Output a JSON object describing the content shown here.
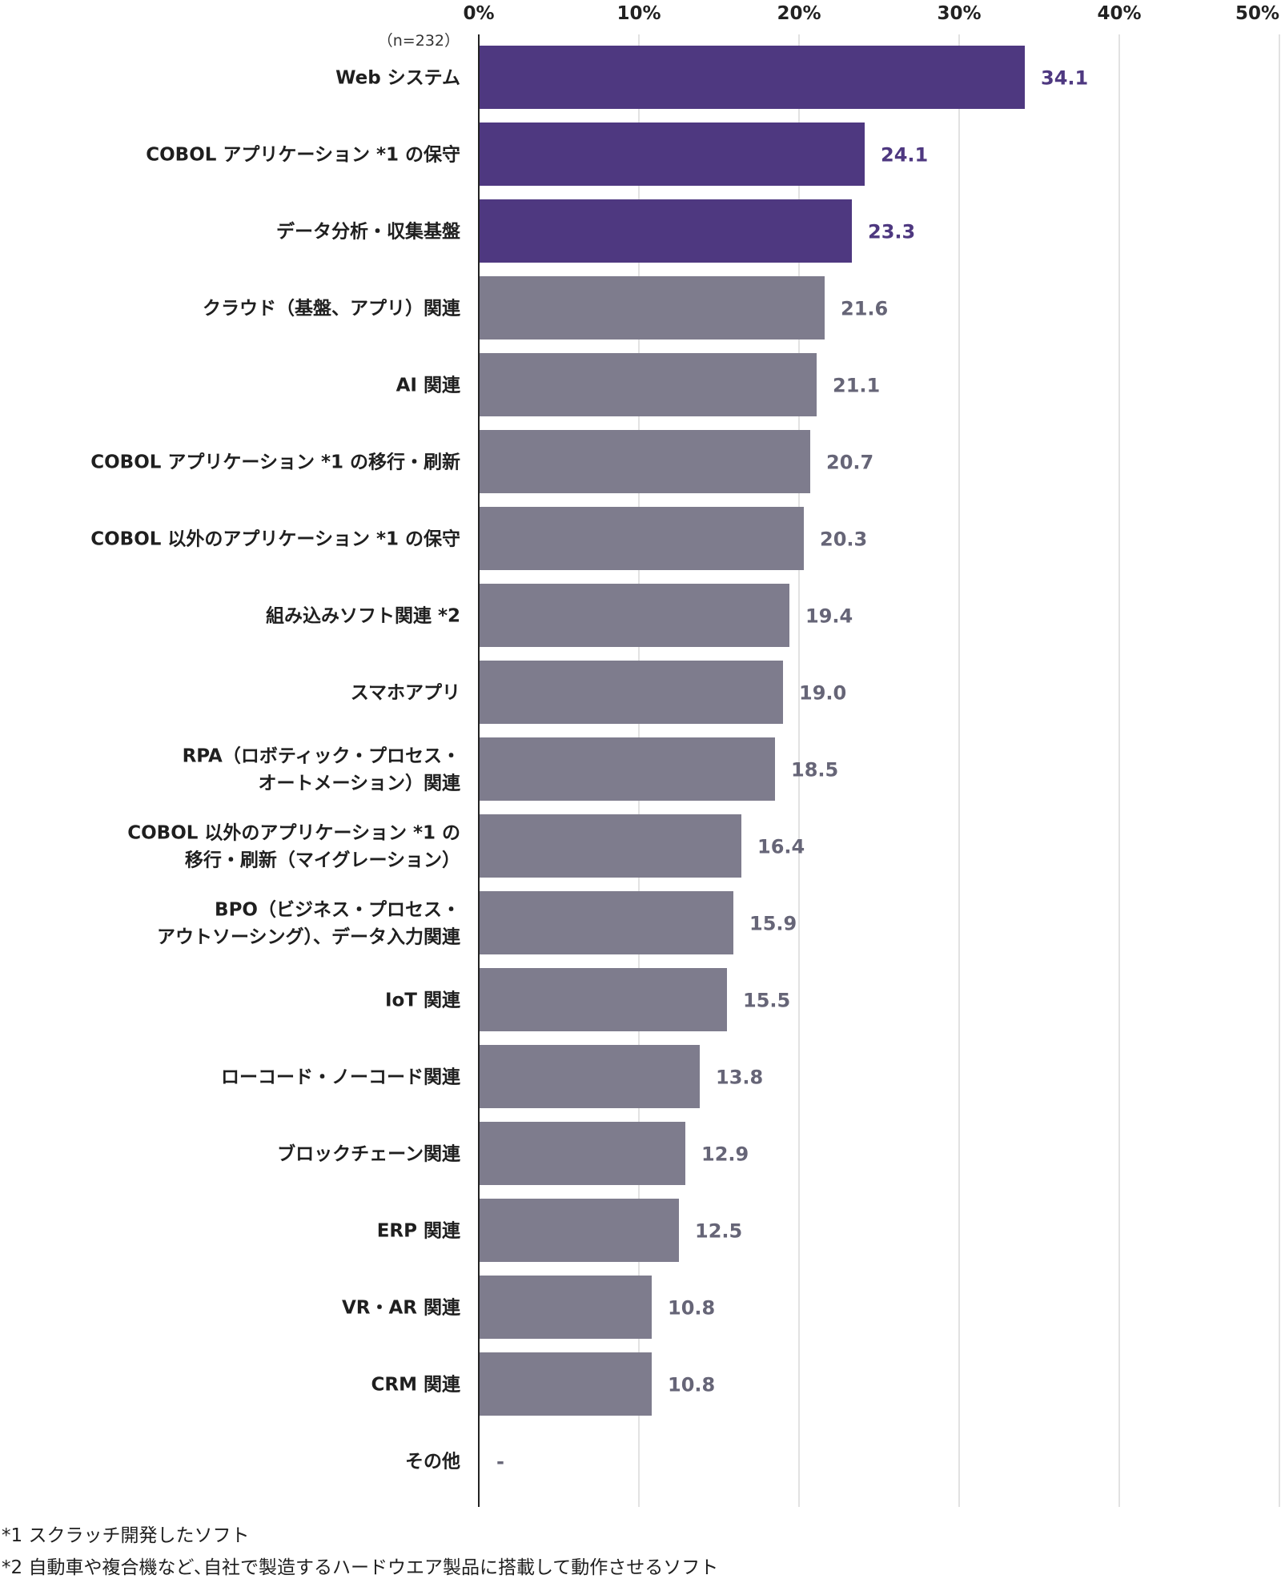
{
  "chart_data": {
    "type": "bar",
    "orientation": "horizontal",
    "sample_note": "（n=232）",
    "xlim": [
      0,
      50
    ],
    "x_ticks": [
      "0%",
      "10%",
      "20%",
      "30%",
      "40%",
      "50%"
    ],
    "grid": true,
    "categories": [
      [
        "Web システム"
      ],
      [
        "COBOL アプリケーション *1 の保守"
      ],
      [
        "データ分析・収集基盤"
      ],
      [
        "クラウド（基盤、アプリ）関連"
      ],
      [
        "AI 関連"
      ],
      [
        "COBOL アプリケーション *1 の移行・刷新"
      ],
      [
        "COBOL 以外のアプリケーション *1 の保守"
      ],
      [
        "組み込みソフト関連 *2"
      ],
      [
        "スマホアプリ"
      ],
      [
        "RPA（ロボティック・プロセス・",
        "オートメーション）関連"
      ],
      [
        "COBOL 以外のアプリケーション *1 の",
        "移行・刷新（マイグレーション）"
      ],
      [
        "BPO（ビジネス・プロセス・",
        "アウトソーシング）、データ入力関連"
      ],
      [
        "IoT 関連"
      ],
      [
        "ローコード・ノーコード関連"
      ],
      [
        "ブロックチェーン関連"
      ],
      [
        "ERP 関連"
      ],
      [
        "VR・AR 関連"
      ],
      [
        "CRM 関連"
      ],
      [
        "その他"
      ]
    ],
    "values": [
      34.1,
      24.1,
      23.3,
      21.6,
      21.1,
      20.7,
      20.3,
      19.4,
      19.0,
      18.5,
      16.4,
      15.9,
      15.5,
      13.8,
      12.9,
      12.5,
      10.8,
      10.8,
      null
    ],
    "value_labels": [
      "34.1",
      "24.1",
      "23.3",
      "21.6",
      "21.1",
      "20.7",
      "20.3",
      "19.4",
      "19.0",
      "18.5",
      "16.4",
      "15.9",
      "15.5",
      "13.8",
      "12.9",
      "12.5",
      "10.8",
      "10.8",
      "-"
    ],
    "highlight_count": 3,
    "colors": {
      "highlight": "#4e3880",
      "default": "#7e7c8d",
      "highlight_label": "#4e3880",
      "default_label": "#666577",
      "grid": "#d9d9d9",
      "axis": "#222222"
    }
  },
  "footnotes": [
    "*1 スクラッチ開発したソフト",
    "*2 自動車や複合機など､自社で製造するハードウエア製品に搭載して動作させるソフト"
  ]
}
